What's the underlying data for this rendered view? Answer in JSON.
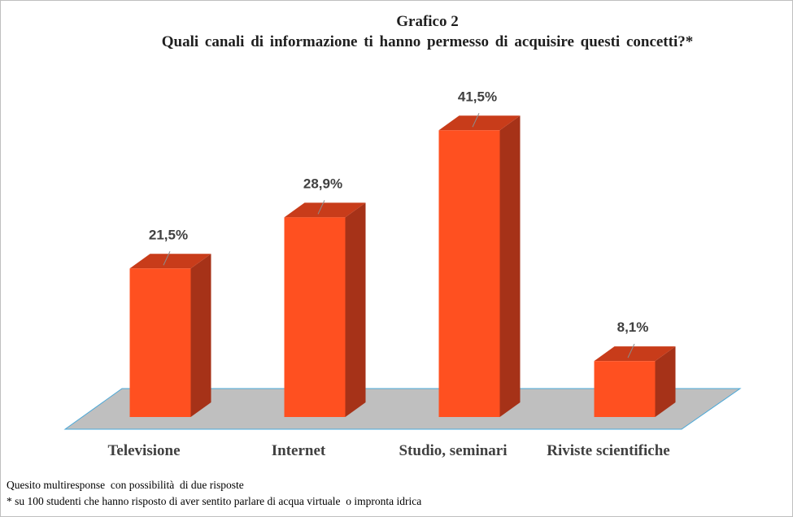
{
  "chart_data": {
    "type": "bar",
    "title": "Grafico 2",
    "subtitle": "Quali canali di informazione ti hanno permesso di acquisire questi concetti?*",
    "categories": [
      "Televisione",
      "Internet",
      "Studio, seminari",
      "Riviste scientifiche"
    ],
    "values": [
      21.5,
      28.9,
      41.5,
      8.1
    ],
    "value_labels": [
      "21,5%",
      "28,9%",
      "41,5%",
      "8,1%"
    ],
    "unit": "%",
    "style": "3d-columns",
    "colors": {
      "bar_front": "#ff5020",
      "bar_side": "#a63218",
      "bar_top": "#c83c1a",
      "floor": "#bfbfbf",
      "floor_edge": "#4aa8d8"
    },
    "grid": false,
    "legend": "none"
  },
  "footnotes": [
    "Quesito multiresponse  con possibilità  di due risposte",
    "* su 100 studenti che hanno risposto di aver sentito parlare di acqua virtuale  o impronta idrica"
  ]
}
